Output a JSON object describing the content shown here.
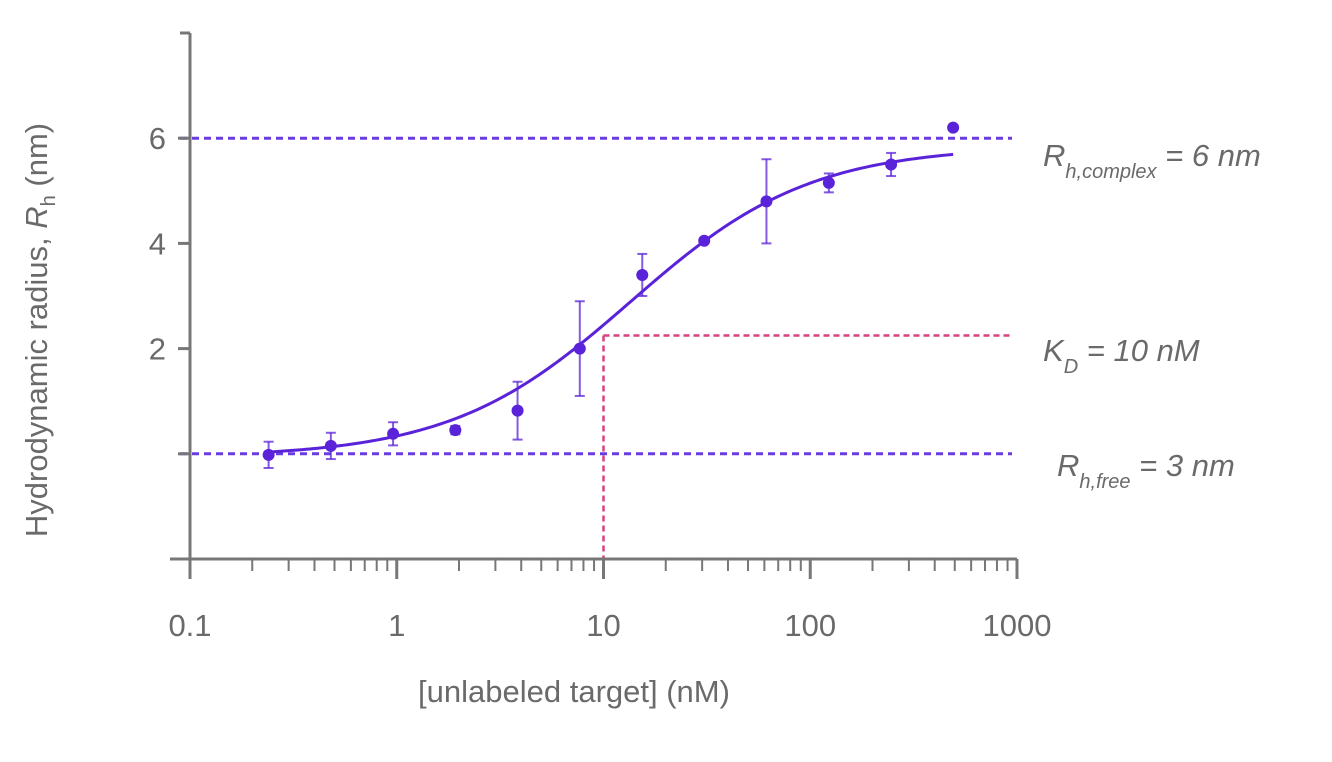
{
  "chart_data": {
    "type": "scatter",
    "xscale": "log",
    "xlim": [
      0.1,
      1000
    ],
    "ylim": [
      -2,
      8
    ],
    "xlabel": "[unlabeled target] (nM)",
    "ylabel_parts": {
      "main": "Hydrodynamic radius, ",
      "var": "R",
      "sub": "h",
      "unit": " (nm)"
    },
    "x_ticks": [
      {
        "value": 0.1,
        "label": "0.1"
      },
      {
        "value": 1,
        "label": "1"
      },
      {
        "value": 10,
        "label": "10"
      },
      {
        "value": 100,
        "label": "100"
      },
      {
        "value": 1000,
        "label": "1000"
      }
    ],
    "y_ticks": [
      {
        "value": 0,
        "label": ""
      },
      {
        "value": 2,
        "label": "2"
      },
      {
        "value": 4,
        "label": "4"
      },
      {
        "value": 6,
        "label": "6"
      }
    ],
    "points": [
      {
        "x": 0.24,
        "y": -0.02,
        "err": 0.25
      },
      {
        "x": 0.48,
        "y": 0.15,
        "err": 0.25
      },
      {
        "x": 0.96,
        "y": 0.38,
        "err": 0.22
      },
      {
        "x": 1.92,
        "y": 0.45,
        "err": 0.08
      },
      {
        "x": 3.84,
        "y": 0.82,
        "err": 0.55
      },
      {
        "x": 7.68,
        "y": 2.0,
        "err": 0.9
      },
      {
        "x": 15.4,
        "y": 3.4,
        "err": 0.4
      },
      {
        "x": 30.7,
        "y": 4.05,
        "err": 0.0
      },
      {
        "x": 61.4,
        "y": 4.8,
        "err": 0.8
      },
      {
        "x": 123,
        "y": 5.15,
        "err": 0.18
      },
      {
        "x": 246,
        "y": 5.5,
        "err": 0.22
      },
      {
        "x": 491,
        "y": 6.2,
        "err": 0.0
      }
    ],
    "fit": {
      "bottom": -0.07,
      "top": 5.85,
      "ec50": 13.5,
      "hill": 1.0,
      "x_range": [
        0.24,
        491
      ]
    },
    "reference_lines": [
      {
        "y": 6,
        "color": "#6a3de0"
      },
      {
        "y": 0,
        "color": "#6a3de0"
      }
    ],
    "kd_marker": {
      "x": 10,
      "y": 2.25,
      "color": "#d9417f"
    },
    "annotations": {
      "complex": {
        "var": "R",
        "sub": "h,complex",
        "rest": " = 6 nm"
      },
      "kd": {
        "var": "K",
        "sub": "D",
        "rest": " = 10 nM"
      },
      "free": {
        "var": "R",
        "sub": "h,free",
        "rest": " = 3 nm"
      }
    },
    "colors": {
      "series": "#5b23d9",
      "axis": "#777777",
      "text": "#6a6a6a"
    }
  }
}
